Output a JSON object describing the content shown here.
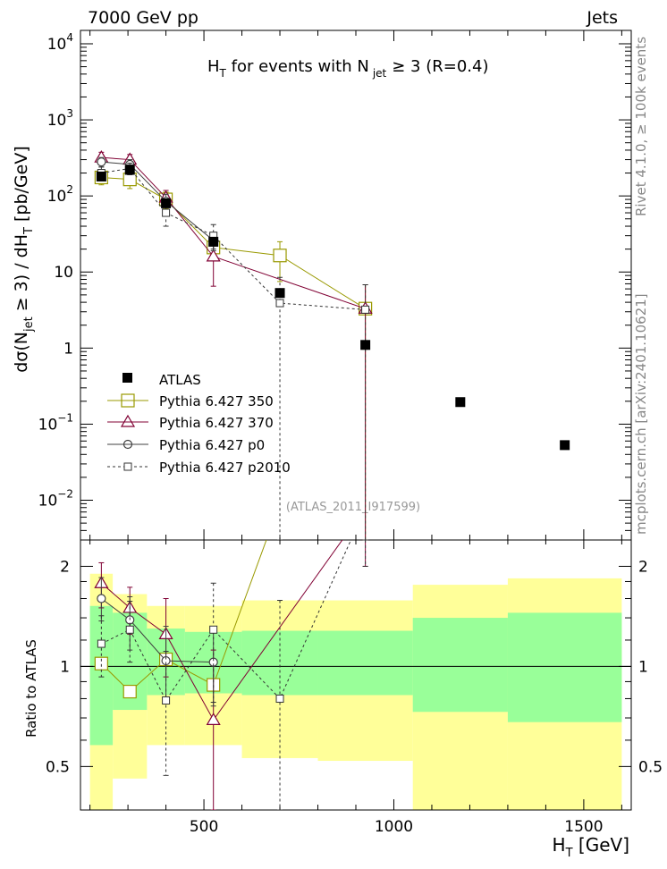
{
  "chart_data": {
    "type": "scatter",
    "header_left": "7000 GeV pp",
    "header_right": "Jets",
    "title": {
      "main": "H",
      "main_sub": "T",
      "rest": " for events with N",
      "rest_sub": "jet",
      "tail": "≥ 3 (R=0.4)"
    },
    "ylabel": {
      "prefix": "dσ(N",
      "sub1": "jet",
      "mid": " ≥ 3) / dH",
      "sub2": "T",
      "suffix": " [pb/GeV]"
    },
    "ratio_ylabel": "Ratio to ATLAS",
    "xlabel": {
      "main": "H",
      "sub": "T",
      "unit": " [GeV]"
    },
    "side_label_top": "Rivet 4.1.0, ≥ 100k events",
    "side_label_bottom": "mcplots.cern.ch [arXiv:2401.10621]",
    "analysis_id": "(ATLAS_2011_I917599)",
    "xlim": [
      175,
      1625
    ],
    "ylim": [
      0.003,
      15000
    ],
    "ratio_ylim": [
      0.37,
      2.4
    ],
    "x_ticks": [
      "500",
      "1000",
      "1500"
    ],
    "x_tick_values": [
      500,
      1000,
      1500
    ],
    "y_ticks": [
      {
        "base": "10",
        "exp": "4",
        "value": 10000
      },
      {
        "base": "10",
        "exp": "3",
        "value": 1000
      },
      {
        "base": "10",
        "exp": "2",
        "value": 100
      },
      {
        "base": "10",
        "exp": "",
        "value": 10
      },
      {
        "base": "1",
        "exp": "",
        "value": 1
      },
      {
        "base": "10",
        "exp": "−1",
        "value": 0.1
      },
      {
        "base": "10",
        "exp": "−2",
        "value": 0.01
      }
    ],
    "ratio_ticks": [
      {
        "label": "2",
        "value": 2
      },
      {
        "label": "1",
        "value": 1
      },
      {
        "label": "0.5",
        "value": 0.5
      }
    ],
    "bins": [
      {
        "lo": 200,
        "hi": 260,
        "yellow": [
          0.37,
          1.9
        ],
        "green": [
          0.58,
          1.52
        ]
      },
      {
        "lo": 260,
        "hi": 350,
        "yellow": [
          0.46,
          1.65
        ],
        "green": [
          0.74,
          1.45
        ]
      },
      {
        "lo": 350,
        "hi": 450,
        "yellow": [
          0.58,
          1.52
        ],
        "green": [
          0.82,
          1.3
        ]
      },
      {
        "lo": 450,
        "hi": 600,
        "yellow": [
          0.58,
          1.52
        ],
        "green": [
          0.83,
          1.27
        ]
      },
      {
        "lo": 600,
        "hi": 800,
        "yellow": [
          0.53,
          1.58
        ],
        "green": [
          0.82,
          1.28
        ]
      },
      {
        "lo": 800,
        "hi": 1050,
        "yellow": [
          0.52,
          1.58
        ],
        "green": [
          0.82,
          1.28
        ]
      },
      {
        "lo": 1050,
        "hi": 1300,
        "yellow": [
          0.37,
          1.76
        ],
        "green": [
          0.73,
          1.4
        ]
      },
      {
        "lo": 1300,
        "hi": 1600,
        "yellow": [
          0.37,
          1.84
        ],
        "green": [
          0.68,
          1.45
        ]
      }
    ],
    "atlas": {
      "name": "ATLAS",
      "x": [
        230,
        305,
        400,
        525,
        700,
        925,
        1175,
        1450
      ],
      "y": [
        180,
        220,
        80,
        25,
        5.3,
        1.1,
        0.195,
        0.053
      ]
    },
    "series": [
      {
        "name": "Pythia 6.427 350",
        "color": "#999900",
        "marker": "square-large",
        "dashed": false,
        "x": [
          230,
          305,
          400,
          525,
          700,
          925
        ],
        "y": [
          175,
          165,
          90,
          21,
          16.5,
          3.3
        ],
        "err": [
          [
            140,
            215
          ],
          [
            125,
            205
          ],
          [
            68,
            112
          ],
          [
            15,
            28
          ],
          [
            7.5,
            25
          ],
          [
            0.002,
            6.8
          ]
        ],
        "ratio_x": [
          230,
          305,
          400,
          525,
          700
        ],
        "ratio": [
          1.02,
          0.84,
          1.05,
          0.88,
          3.1
        ]
      },
      {
        "name": "Pythia 6.427 370",
        "color": "#800033",
        "marker": "triangle",
        "dashed": false,
        "x": [
          230,
          305,
          400,
          525,
          925
        ],
        "y": [
          320,
          300,
          95,
          16,
          3.3
        ],
        "err": [
          [
            265,
            375
          ],
          [
            250,
            350
          ],
          [
            72,
            118
          ],
          [
            6.5,
            26
          ],
          [
            0.002,
            6.8
          ]
        ],
        "ratio_x": [
          230,
          305,
          400,
          525,
          925
        ],
        "ratio": [
          1.78,
          1.5,
          1.25,
          0.69,
          3.0
        ],
        "ratio_err": [
          [
            1.5,
            2.05
          ],
          [
            1.25,
            1.73
          ],
          [
            0.93,
            1.6
          ],
          [
            0.33,
            1.12
          ],
          [
            2.0,
            4.0
          ]
        ]
      },
      {
        "name": "Pythia 6.427 p0",
        "color": "#404040",
        "marker": "circle",
        "dashed": false,
        "x": [
          230,
          305,
          400,
          525
        ],
        "y": [
          280,
          260,
          85,
          26
        ],
        "err": [
          [
            240,
            320
          ],
          [
            225,
            300
          ],
          [
            66,
            105
          ],
          [
            19,
            33
          ]
        ],
        "ratio_x": [
          230,
          305,
          400,
          525
        ],
        "ratio": [
          1.6,
          1.38,
          1.04,
          1.03
        ],
        "ratio_err": [
          [
            1.37,
            1.85
          ],
          [
            1.12,
            1.62
          ],
          [
            0.78,
            1.32
          ],
          [
            0.76,
            1.3
          ]
        ]
      },
      {
        "name": "Pythia 6.427 p2010",
        "color": "#333333",
        "marker": "square-small",
        "dashed": true,
        "x": [
          230,
          305,
          400,
          525,
          700,
          925
        ],
        "y": [
          200,
          230,
          60,
          30,
          3.9,
          3.2
        ],
        "err": [
          [
            170,
            240
          ],
          [
            190,
            270
          ],
          [
            40,
            80
          ],
          [
            20,
            42
          ],
          [
            0.002,
            8.5
          ],
          [
            0.002,
            6.8
          ]
        ],
        "ratio_x": [
          230,
          305,
          400,
          525,
          700,
          925
        ],
        "ratio": [
          1.17,
          1.29,
          0.79,
          1.29,
          0.8,
          3.0
        ],
        "ratio_err": [
          [
            0.93,
            1.42
          ],
          [
            1.03,
            1.57
          ],
          [
            0.47,
            1.11
          ],
          [
            0.78,
            1.78
          ],
          [
            0.37,
            1.58
          ],
          [
            2.0,
            4.0
          ]
        ]
      }
    ]
  }
}
